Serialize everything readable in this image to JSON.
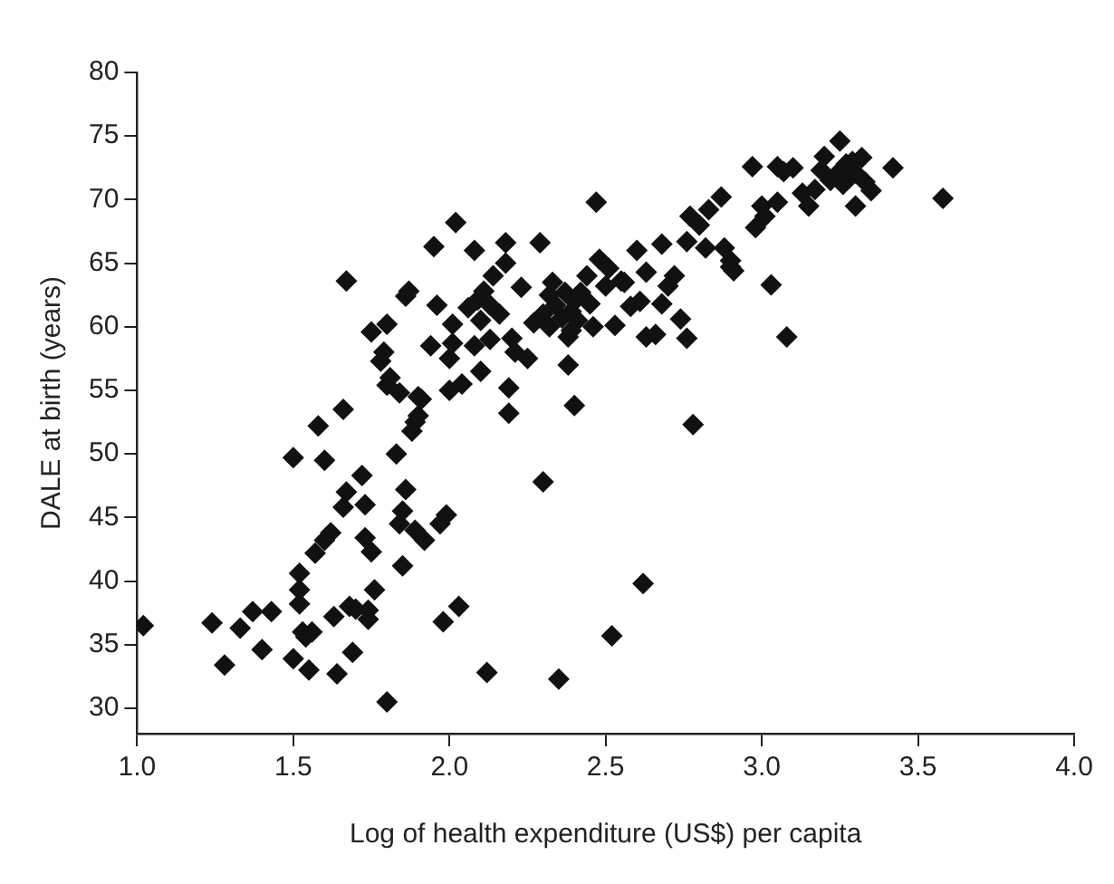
{
  "chart_data": {
    "type": "scatter",
    "xlabel": "Log of health expenditure (US$) per capita",
    "ylabel": "DALE at birth (years)",
    "marker": "diamond",
    "grid": false,
    "legend": false,
    "xlim": [
      1,
      4
    ],
    "xticks": [
      {
        "value": 1,
        "label": "1.0"
      },
      {
        "value": 1.5,
        "label": "1.5"
      },
      {
        "value": 2,
        "label": "2.0"
      },
      {
        "value": 2.5,
        "label": "2.5"
      },
      {
        "value": 3,
        "label": "3.0"
      },
      {
        "value": 3.5,
        "label": "3.5"
      },
      {
        "value": 4,
        "label": "4.0"
      }
    ],
    "ylim": [
      28,
      80
    ],
    "yticks": [
      30,
      35,
      40,
      45,
      50,
      55,
      60,
      65,
      70,
      75,
      80
    ],
    "series": [
      {
        "color": "#111111",
        "x": [
          1.02,
          1.24,
          1.28,
          1.33,
          1.37,
          1.4,
          1.43,
          1.5,
          1.52,
          1.52,
          1.52,
          1.53,
          1.54,
          1.55,
          1.56,
          1.5,
          1.57,
          1.58,
          1.6,
          1.6,
          1.62,
          1.63,
          1.64,
          1.66,
          1.66,
          1.67,
          1.67,
          1.68,
          1.69,
          1.7,
          1.72,
          1.73,
          1.73,
          1.74,
          1.74,
          1.75,
          1.75,
          1.76,
          1.78,
          1.79,
          1.8,
          1.8,
          1.8,
          1.81,
          1.83,
          1.84,
          1.84,
          1.85,
          1.85,
          1.86,
          1.86,
          1.87,
          1.88,
          1.89,
          1.89,
          1.9,
          1.9,
          1.91,
          1.92,
          1.94,
          1.95,
          1.96,
          1.97,
          1.98,
          1.99,
          2.0,
          2.0,
          2.01,
          2.01,
          2.02,
          2.03,
          2.04,
          2.06,
          2.08,
          2.08,
          2.09,
          2.1,
          2.1,
          2.11,
          2.12,
          2.13,
          2.13,
          2.14,
          2.16,
          2.18,
          2.18,
          2.19,
          2.19,
          2.2,
          2.21,
          2.23,
          2.25,
          2.27,
          2.29,
          2.3,
          2.3,
          2.32,
          2.32,
          2.33,
          2.34,
          2.35,
          2.36,
          2.37,
          2.38,
          2.38,
          2.39,
          2.39,
          2.4,
          2.4,
          2.41,
          2.42,
          2.44,
          2.45,
          2.46,
          2.47,
          2.48,
          2.5,
          2.51,
          2.52,
          2.53,
          2.55,
          2.56,
          2.58,
          2.6,
          2.61,
          2.62,
          2.63,
          2.63,
          2.66,
          2.68,
          2.68,
          2.7,
          2.72,
          2.74,
          2.76,
          2.76,
          2.77,
          2.78,
          2.8,
          2.82,
          2.83,
          2.87,
          2.88,
          2.9,
          2.9,
          2.91,
          2.97,
          2.98,
          3.0,
          3.01,
          3.03,
          3.05,
          3.05,
          3.07,
          3.08,
          3.1,
          3.13,
          3.15,
          3.17,
          3.19,
          3.2,
          3.22,
          3.24,
          3.25,
          3.26,
          3.27,
          3.28,
          3.29,
          3.3,
          3.3,
          3.32,
          3.33,
          3.35,
          3.42,
          3.58
        ],
        "values": [
          36.5,
          36.7,
          33.4,
          36.3,
          37.6,
          34.6,
          37.6,
          33.9,
          40.6,
          39.3,
          38.2,
          36.0,
          35.6,
          33.0,
          36.0,
          49.7,
          42.2,
          52.2,
          49.5,
          43.2,
          43.8,
          37.2,
          32.7,
          53.5,
          45.8,
          47.0,
          63.6,
          38.0,
          34.4,
          37.8,
          48.3,
          46.0,
          43.4,
          37.7,
          37.0,
          42.3,
          59.6,
          39.3,
          57.3,
          58.0,
          60.2,
          55.4,
          30.5,
          56.0,
          50.0,
          54.8,
          44.5,
          41.2,
          45.5,
          62.4,
          47.2,
          62.8,
          51.8,
          44.0,
          52.5,
          53.0,
          54.5,
          54.3,
          43.2,
          58.5,
          66.3,
          61.7,
          44.5,
          36.8,
          45.2,
          57.5,
          55.0,
          60.2,
          58.7,
          68.2,
          38.0,
          55.5,
          61.5,
          66.0,
          58.5,
          62.1,
          60.5,
          56.5,
          62.8,
          32.8,
          61.7,
          59.0,
          64.0,
          61.0,
          65.0,
          66.6,
          55.2,
          53.2,
          59.1,
          58.0,
          63.1,
          57.5,
          60.3,
          66.6,
          61.0,
          47.8,
          62.5,
          60.0,
          63.5,
          61.7,
          32.3,
          60.7,
          62.7,
          59.2,
          57.0,
          61.2,
          59.7,
          53.8,
          62.0,
          60.5,
          62.7,
          64.0,
          61.8,
          60.0,
          69.8,
          65.3,
          63.2,
          64.6,
          35.7,
          60.1,
          63.6,
          63.5,
          61.6,
          66.0,
          62.0,
          39.8,
          64.3,
          59.2,
          59.4,
          66.5,
          61.8,
          63.2,
          64.0,
          60.6,
          59.1,
          66.7,
          68.7,
          52.3,
          68.0,
          66.2,
          69.2,
          70.2,
          66.2,
          65.2,
          64.7,
          64.4,
          72.6,
          67.8,
          69.5,
          68.7,
          63.3,
          69.8,
          72.6,
          72.2,
          59.2,
          72.5,
          70.5,
          69.5,
          70.8,
          72.3,
          73.4,
          71.5,
          72.0,
          74.6,
          71.2,
          72.8,
          71.7,
          73.0,
          72.1,
          69.5,
          73.3,
          71.4,
          70.7,
          72.5,
          70.1
        ]
      }
    ]
  }
}
